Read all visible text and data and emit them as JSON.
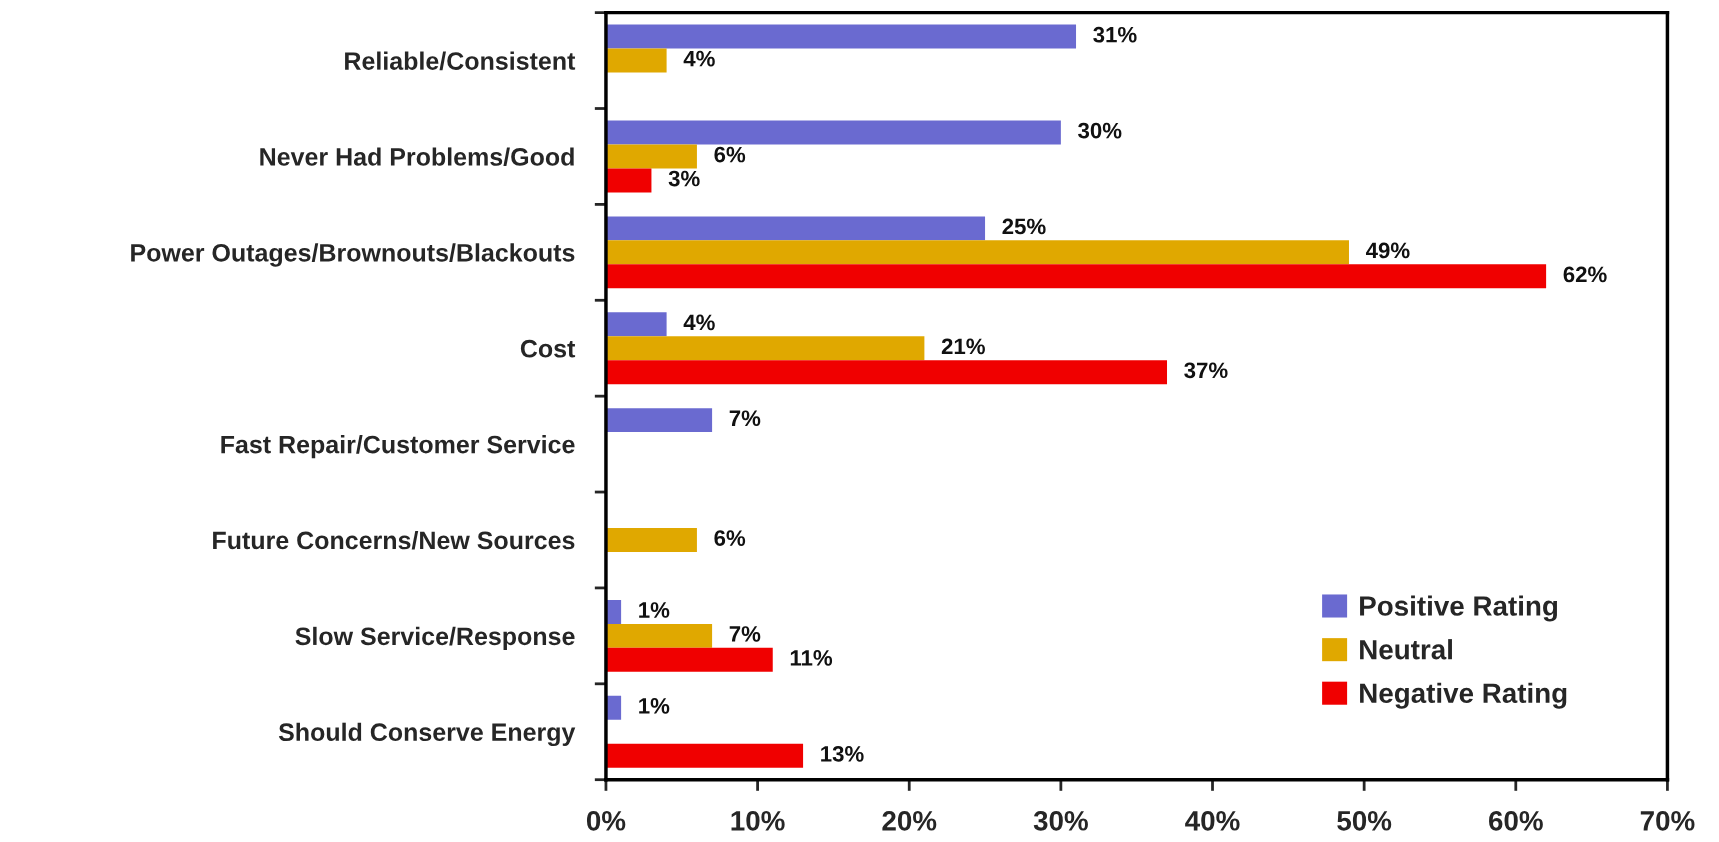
{
  "chart_data": {
    "type": "bar",
    "orientation": "horizontal",
    "categories": [
      "Reliable/Consistent",
      "Never Had Problems/Good",
      "Power Outages/Brownouts/Blackouts",
      "Cost",
      "Fast Repair/Customer Service",
      "Future Concerns/New Sources",
      "Slow Service/Response",
      "Should Conserve Energy"
    ],
    "series": [
      {
        "name": "Positive Rating",
        "color": "#6a6ad0",
        "values": [
          31,
          30,
          25,
          4,
          7,
          null,
          1,
          1
        ],
        "value_labels": [
          "31%",
          "30%",
          "25%",
          "4%",
          "7%",
          null,
          "1%",
          "1%"
        ]
      },
      {
        "name": "Neutral",
        "color": "#e0a800",
        "values": [
          4,
          6,
          49,
          21,
          null,
          6,
          7,
          null
        ],
        "value_labels": [
          "4%",
          "6%",
          "49%",
          "21%",
          null,
          "6%",
          "7%",
          null
        ]
      },
      {
        "name": "Negative Rating",
        "color": "#f00000",
        "values": [
          null,
          3,
          62,
          37,
          null,
          null,
          11,
          13
        ],
        "value_labels": [
          null,
          "3%",
          "62%",
          "37%",
          null,
          null,
          "11%",
          "13%"
        ]
      }
    ],
    "xlim": [
      0,
      70
    ],
    "xticks": [
      {
        "value": 0,
        "label": "0%"
      },
      {
        "value": 10,
        "label": "10%"
      },
      {
        "value": 20,
        "label": "20%"
      },
      {
        "value": 30,
        "label": "30%"
      },
      {
        "value": 40,
        "label": "40%"
      },
      {
        "value": 50,
        "label": "50%"
      },
      {
        "value": 60,
        "label": "60%"
      },
      {
        "value": 70,
        "label": "70%"
      }
    ],
    "grid": false,
    "legend": "bottom right"
  }
}
